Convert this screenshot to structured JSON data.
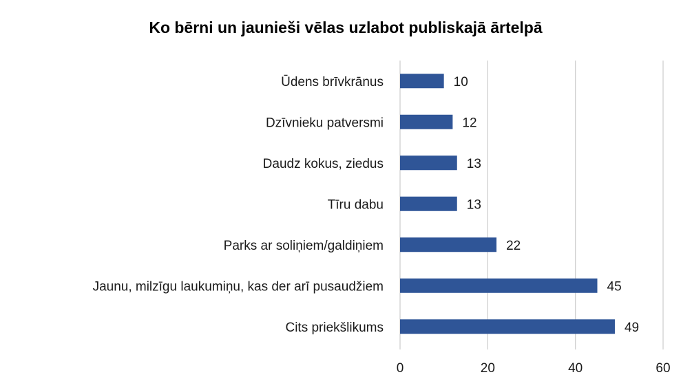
{
  "chart_data": {
    "type": "bar",
    "orientation": "horizontal",
    "title": "Ko bērni un jaunieši vēlas uzlabot publiskajā ārtelpā",
    "xlabel": "",
    "ylabel": "",
    "categories": [
      "Ūdens brīvkrānus",
      "Dzīvnieku patversmi",
      "Daudz kokus, ziedus",
      "Tīru dabu",
      "Parks ar soliņiem/galdiņiem",
      "Jaunu, milzīgu laukumiņu, kas der arī pusaudžiem",
      "Cits priekšlikums"
    ],
    "values": [
      10,
      12,
      13,
      13,
      22,
      45,
      49
    ],
    "value_labels": [
      "10",
      "12",
      "13",
      "13",
      "22",
      "45",
      "49"
    ],
    "xlim": [
      0,
      60
    ],
    "xticks": [
      0,
      20,
      40,
      60
    ],
    "xtick_labels": [
      "0",
      "20",
      "40",
      "60"
    ],
    "grid": true,
    "legend": "none",
    "colors": {
      "bar": "#2f5597",
      "grid": "#d0d0d0",
      "text": "#1a1a1a"
    }
  }
}
